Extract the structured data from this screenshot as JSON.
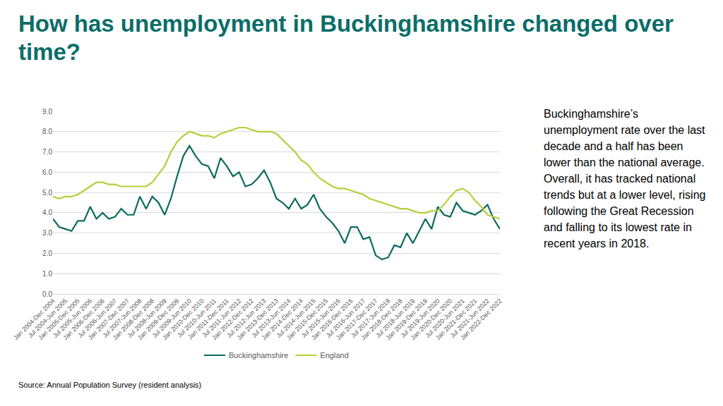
{
  "chart_data": {
    "type": "line",
    "title": "How has unemployment in Buckinghamshire changed over time?",
    "categories": [
      "Jan 2004-Dec 2004",
      null,
      "Jul 2004-Jun 2005",
      null,
      "Jan 2005-Dec 2005",
      null,
      "Jul 2005-Jun 2006",
      null,
      "Jan 2006-Dec 2006",
      null,
      "Jul 2006-Jun 2007",
      null,
      "Jan 2007-Dec 2007",
      null,
      "Jul 2007-Jun 2008",
      null,
      "Jan 2008-Dec 2008",
      null,
      "Jul 2008-Jun 2009",
      null,
      "Jan 2009-Dec 2009",
      null,
      "Jul 2009-Jun 2010",
      null,
      "Jan 2010-Dec 2010",
      null,
      "Jul 2010-Jun 2011",
      null,
      "Jan 2011-Dec 2011",
      null,
      "Jul 2011-Jun 2012",
      null,
      "Jan 2012-Dec 2012",
      null,
      "Jul 2012-Jun 2013",
      null,
      "Jan 2013-Dec 2013",
      null,
      "Jul 2013-Jun 2014",
      null,
      "Jan 2014-Dec 2014",
      null,
      "Jul 2014-Jun 2015",
      null,
      "Jan 2015-Dec 2015",
      null,
      "Jul 2015-Jun 2016",
      null,
      "Jan 2016-Dec 2016",
      null,
      "Jul 2016-Jun 2017",
      null,
      "Jan 2017-Dec 2017",
      null,
      "Jul 2017-Jun 2018",
      null,
      "Jan 2018-Dec 2018",
      null,
      "Jul 2018-Jun 2019",
      null,
      "Jan 2019-Dec 2019",
      null,
      "Jul 2019-Jun 2020",
      null,
      "Jan 2020-Dec 2020",
      null,
      "Jul 2020-Jun 2021",
      null,
      "Jan 2021-Dec 2021",
      null,
      "Jul 2021-Jun 2022",
      null,
      "Jan 2022-Dec 2022"
    ],
    "series": [
      {
        "name": "Buckinghamshire",
        "color": "#0b6b5e",
        "values": [
          3.7,
          3.3,
          3.2,
          3.1,
          3.6,
          3.6,
          4.3,
          3.7,
          4.0,
          3.7,
          3.8,
          4.2,
          3.9,
          3.9,
          4.8,
          4.2,
          4.8,
          4.5,
          3.9,
          4.7,
          5.8,
          6.8,
          7.3,
          6.8,
          6.4,
          6.3,
          5.7,
          6.7,
          6.3,
          5.8,
          6.0,
          5.3,
          5.4,
          5.7,
          6.1,
          5.5,
          4.7,
          4.5,
          4.2,
          4.7,
          4.2,
          4.4,
          4.9,
          4.2,
          3.8,
          3.5,
          3.1,
          2.5,
          3.3,
          3.3,
          2.7,
          2.8,
          1.9,
          1.7,
          1.8,
          2.4,
          2.3,
          3.0,
          2.5,
          3.1,
          3.7,
          3.2,
          4.3,
          3.9,
          3.8,
          4.5,
          4.1,
          4.0,
          3.9,
          4.1,
          4.4,
          3.7,
          3.2
        ]
      },
      {
        "name": "England",
        "color": "#b5cf3b",
        "values": [
          4.8,
          4.7,
          4.8,
          4.8,
          4.9,
          5.1,
          5.3,
          5.5,
          5.5,
          5.4,
          5.4,
          5.3,
          5.3,
          5.3,
          5.3,
          5.3,
          5.5,
          5.9,
          6.3,
          7.0,
          7.5,
          7.8,
          8.0,
          7.9,
          7.8,
          7.8,
          7.7,
          7.9,
          8.0,
          8.1,
          8.2,
          8.2,
          8.1,
          8.0,
          8.0,
          8.0,
          7.9,
          7.6,
          7.3,
          7.0,
          6.6,
          6.4,
          6.0,
          5.7,
          5.5,
          5.3,
          5.2,
          5.2,
          5.1,
          5.0,
          4.9,
          4.7,
          4.6,
          4.5,
          4.4,
          4.3,
          4.2,
          4.2,
          4.1,
          4.0,
          4.0,
          4.1,
          4.1,
          4.4,
          4.8,
          5.1,
          5.2,
          5.0,
          4.6,
          4.3,
          3.9,
          3.8,
          3.7
        ]
      }
    ],
    "ylim": [
      0,
      9
    ],
    "yticks": [
      {
        "value": 0,
        "label": "0.0"
      },
      {
        "value": 1,
        "label": "1.0"
      },
      {
        "value": 2,
        "label": "2.0"
      },
      {
        "value": 3,
        "label": "3.0"
      },
      {
        "value": 4,
        "label": "4.0"
      },
      {
        "value": 5,
        "label": "5.0"
      },
      {
        "value": 6,
        "label": "6.0"
      },
      {
        "value": 7,
        "label": "7.0"
      },
      {
        "value": 8,
        "label": "8.0"
      },
      {
        "value": 9,
        "label": "9.0"
      }
    ],
    "grid": true,
    "legend": "bottom"
  },
  "commentary": "Buckinghamshire’s unemployment rate over the last decade and a half has been lower than the national average.  Overall, it has tracked national trends but at a lower level, rising following the Great Recession and falling to its lowest rate in recent years in 2018.",
  "source": "Source: Annual Population Survey (resident analysis)"
}
